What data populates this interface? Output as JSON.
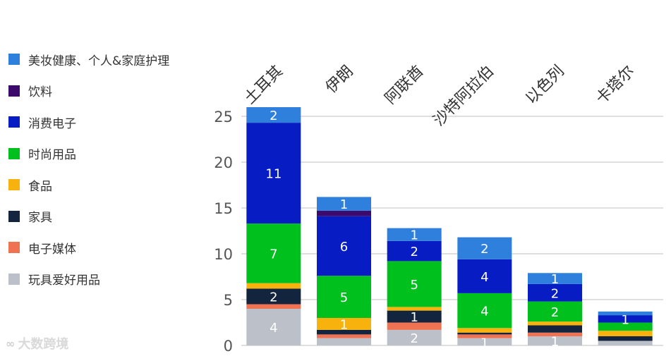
{
  "chart_data": {
    "type": "bar",
    "stacked": true,
    "categories": [
      "土耳其",
      "伊朗",
      "阿联酋",
      "沙特阿拉伯",
      "以色列",
      "卡塔尔"
    ],
    "ylim": [
      0,
      25
    ],
    "yticks": [
      0,
      5,
      10,
      15,
      20,
      25
    ],
    "grid": true,
    "legend_position": "left",
    "series": [
      {
        "name": "玩具爱好用品",
        "color": "#bcc1c9",
        "values": [
          4,
          0.8,
          1.7,
          0.8,
          1,
          0.5
        ],
        "labels": [
          "4",
          "",
          "2",
          "1",
          "1",
          ""
        ]
      },
      {
        "name": "电子媒体",
        "color": "#ef7253",
        "values": [
          0.5,
          0.4,
          0.8,
          0.4,
          0.4,
          0
        ],
        "labels": [
          "",
          "",
          "",
          "",
          "",
          ""
        ]
      },
      {
        "name": "家具",
        "color": "#13243f",
        "values": [
          1.7,
          0.5,
          1.3,
          0.2,
          0.8,
          0.5
        ],
        "labels": [
          "2",
          "",
          "1",
          "",
          "",
          ""
        ]
      },
      {
        "name": "食品",
        "color": "#f8b20e",
        "values": [
          0.6,
          1.3,
          0.4,
          0.5,
          0.4,
          0.6
        ],
        "labels": [
          "",
          "1",
          "",
          "",
          "",
          ""
        ]
      },
      {
        "name": "时尚用品",
        "color": "#00c01e",
        "values": [
          6.5,
          4.6,
          5,
          3.8,
          2.2,
          0.9
        ],
        "labels": [
          "7",
          "5",
          "5",
          "4",
          "2",
          ""
        ]
      },
      {
        "name": "消费电子",
        "color": "#071dc3",
        "values": [
          11,
          6.5,
          2.2,
          3.7,
          1.9,
          0.8
        ],
        "labels": [
          "11",
          "6",
          "2",
          "4",
          "2",
          "1"
        ]
      },
      {
        "name": "饮料",
        "color": "#3b0a6b",
        "values": [
          0,
          0.6,
          0,
          0,
          0,
          0
        ],
        "labels": [
          "",
          "",
          "",
          "",
          "",
          ""
        ]
      },
      {
        "name": "美妆健康、个人&家庭护理",
        "color": "#2f7fdc",
        "values": [
          1.7,
          1.5,
          1.4,
          2.4,
          1.2,
          0.4
        ],
        "labels": [
          "2",
          "1",
          "1",
          "2",
          "1",
          ""
        ]
      }
    ]
  },
  "legend": [
    {
      "label": "美妆健康、个人&家庭护理",
      "color": "#2f7fdc"
    },
    {
      "label": "饮料",
      "color": "#3b0a6b"
    },
    {
      "label": "消费电子",
      "color": "#071dc3"
    },
    {
      "label": "时尚用品",
      "color": "#00c01e"
    },
    {
      "label": "食品",
      "color": "#f8b20e"
    },
    {
      "label": "家具",
      "color": "#13243f"
    },
    {
      "label": "电子媒体",
      "color": "#ef7253"
    },
    {
      "label": "玩具爱好用品",
      "color": "#bcc1c9"
    }
  ],
  "watermark": {
    "text": "大数跨境",
    "icon": "logo-icon"
  }
}
